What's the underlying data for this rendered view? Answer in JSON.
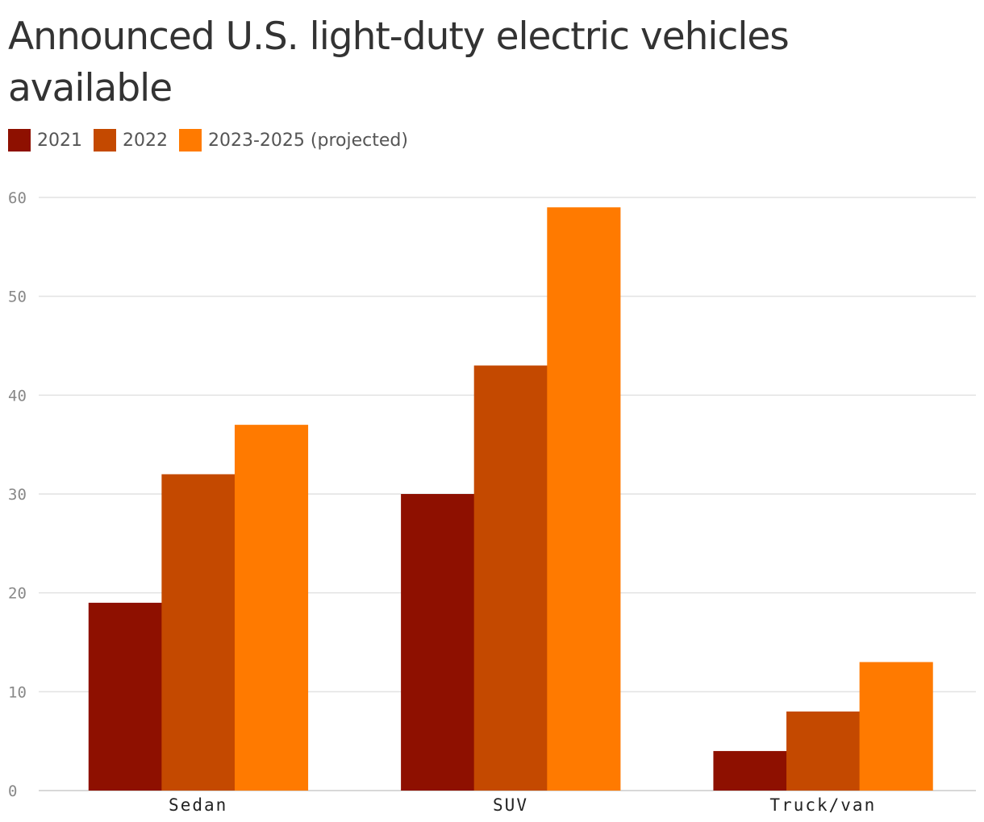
{
  "chart_data": {
    "type": "bar",
    "title": "Announced U.S. light-duty electric vehicles available",
    "categories": [
      "Sedan",
      "SUV",
      "Truck/van"
    ],
    "series": [
      {
        "name": "2021",
        "color": "#8e1000",
        "values": [
          19,
          30,
          4
        ]
      },
      {
        "name": "2022",
        "color": "#c44900",
        "values": [
          32,
          43,
          8
        ]
      },
      {
        "name": "2023-2025 (projected)",
        "color": "#ff7a00",
        "values": [
          37,
          59,
          13
        ]
      }
    ],
    "ylim": [
      0,
      60
    ],
    "yticks": [
      0,
      10,
      20,
      30,
      40,
      50,
      60
    ],
    "grid": true,
    "legend": "top-left",
    "xlabel": "",
    "ylabel": ""
  }
}
